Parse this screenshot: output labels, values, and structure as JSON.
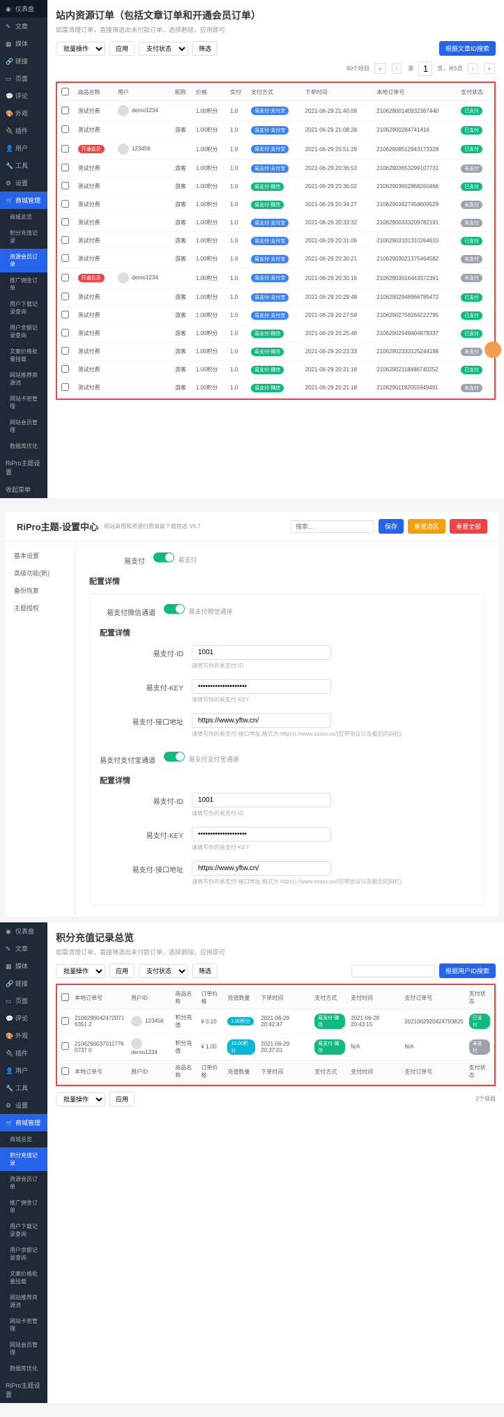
{
  "s1": {
    "title": "站内资源订单（包括文章订单和开通会员订单）",
    "subtitle": "如需清理订单，直接筛选出未付款订单，选择删除，应用即可",
    "bulk": "批量操作",
    "apply": "应用",
    "payStatus": "支付状态",
    "filter": "筛选",
    "searchBtn": "根据文章ID搜索",
    "pagerText": "90个项目",
    "pageLabel": "页，共5页",
    "cols": [
      "商品名称",
      "用户",
      "昵称",
      "价格",
      "实付",
      "支付方式",
      "下单时间",
      "本地订单号",
      "支付状态"
    ],
    "side": [
      "仪表盘",
      "文章",
      "媒体",
      "链接",
      "页面",
      "评论",
      "外观",
      "插件",
      "用户",
      "工具",
      "设置"
    ],
    "sideShop": "商城管理",
    "sideSub": [
      "商城总览",
      "积分充值记录",
      "资源会员订单",
      "推广佣金订单",
      "用户下载记录查询",
      "用户余额记录查询",
      "文案价格批量挂载",
      "网站推荐资源池",
      "网站卡密管理",
      "网站会员管理",
      "数据库优化"
    ],
    "sideRipro": "RiPro主题设置",
    "sideCollapse": "收起菜单",
    "rows": [
      {
        "name": "测试付费",
        "nameBadge": "",
        "user": "demo1234",
        "nick": "",
        "price": "1.00积分",
        "paid": "1.0",
        "pay": "易支付-支付宝",
        "payCls": "b-blue",
        "time": "2021-06-29 21:40:09",
        "order": "21062900140932367440",
        "status": "已支付",
        "stCls": "b-green"
      },
      {
        "name": "测试付费",
        "nameBadge": "",
        "user": "",
        "nick": "游客",
        "price": "1.00积分",
        "paid": "1.0",
        "pay": "易支付-支付宝",
        "payCls": "b-blue",
        "time": "2021-06-29 21:08:28",
        "order": "21062900284741416",
        "status": "已支付",
        "stCls": "b-green"
      },
      {
        "name": "",
        "nameBadge": "开通会员",
        "user": "123456",
        "nick": "",
        "price": "1.00积分",
        "paid": "1.0",
        "pay": "易支付-支付宝",
        "payCls": "b-blue",
        "time": "2021-06-29 20:51:29",
        "order": "21062908512943173328",
        "status": "已支付",
        "stCls": "b-green"
      },
      {
        "name": "测试付费",
        "nameBadge": "",
        "user": "",
        "nick": "游客",
        "price": "1.00积分",
        "paid": "1.0",
        "pay": "易支付-支付宝",
        "payCls": "b-blue",
        "time": "2021-06-29 20:36:53",
        "order": "21062903653299107731",
        "status": "未支付",
        "stCls": "b-gray"
      },
      {
        "name": "测试付费",
        "nameBadge": "",
        "user": "",
        "nick": "游客",
        "price": "1.00积分",
        "paid": "1.0",
        "pay": "易支付-微信",
        "payCls": "b-green",
        "time": "2021-06-29 20:36:02",
        "order": "21062903602868260466",
        "status": "已支付",
        "stCls": "b-green"
      },
      {
        "name": "测试付费",
        "nameBadge": "",
        "user": "",
        "nick": "游客",
        "price": "1.00积分",
        "paid": "1.0",
        "pay": "易支付-微信",
        "payCls": "b-green",
        "time": "2021-06-29 20:34:27",
        "order": "21062903427458609529",
        "status": "未支付",
        "stCls": "b-gray"
      },
      {
        "name": "测试付费",
        "nameBadge": "",
        "user": "",
        "nick": "游客",
        "price": "1.00积分",
        "paid": "1.0",
        "pay": "易支付-支付宝",
        "payCls": "b-blue",
        "time": "2021-06-29 20:33:32",
        "order": "21062900333209782191",
        "status": "未支付",
        "stCls": "b-gray"
      },
      {
        "name": "测试付费",
        "nameBadge": "",
        "user": "",
        "nick": "游客",
        "price": "1.00积分",
        "paid": "1.0",
        "pay": "易支付-支付宝",
        "payCls": "b-blue",
        "time": "2021-06-29 20:31:06",
        "order": "21062903101310264610",
        "status": "已支付",
        "stCls": "b-green"
      },
      {
        "name": "测试付费",
        "nameBadge": "",
        "user": "",
        "nick": "游客",
        "price": "1.00积分",
        "paid": "1.0",
        "pay": "易支付-支付宝",
        "payCls": "b-blue",
        "time": "2021-06-29 20:30:21",
        "order": "21062903021375464582",
        "status": "未支付",
        "stCls": "b-gray"
      },
      {
        "name": "",
        "nameBadge": "开通会员",
        "user": "demo1234",
        "nick": "",
        "price": "1.00积分",
        "paid": "1.0",
        "pay": "易支付-支付宝",
        "payCls": "b-blue",
        "time": "2021-06-29 20:30:16",
        "order": "21062903016443372391",
        "status": "未支付",
        "stCls": "b-gray"
      },
      {
        "name": "测试付费",
        "nameBadge": "",
        "user": "",
        "nick": "游客",
        "price": "1.00积分",
        "paid": "1.0",
        "pay": "易支付-支付宝",
        "payCls": "b-blue",
        "time": "2021-06-29 20:29:48",
        "order": "21062902948966785472",
        "status": "已支付",
        "stCls": "b-green"
      },
      {
        "name": "测试付费",
        "nameBadge": "",
        "user": "",
        "nick": "游客",
        "price": "1.00积分",
        "paid": "1.0",
        "pay": "易支付-支付宝",
        "payCls": "b-blue",
        "time": "2021-06-29 20:27:58",
        "order": "21062902758264222795",
        "status": "已支付",
        "stCls": "b-green"
      },
      {
        "name": "测试付费",
        "nameBadge": "",
        "user": "",
        "nick": "游客",
        "price": "1.00积分",
        "paid": "1.0",
        "pay": "易支付-微信",
        "payCls": "b-green",
        "time": "2021-06-29 20:25:49",
        "order": "21062902549404878337",
        "status": "已支付",
        "stCls": "b-green"
      },
      {
        "name": "测试付费",
        "nameBadge": "",
        "user": "",
        "nick": "游客",
        "price": "1.00积分",
        "paid": "1.0",
        "pay": "易支付-微信",
        "payCls": "b-green",
        "time": "2021-06-29 20:23:33",
        "order": "21062902333125244198",
        "status": "未支付",
        "stCls": "b-gray"
      },
      {
        "name": "测试付费",
        "nameBadge": "",
        "user": "",
        "nick": "游客",
        "price": "1.00积分",
        "paid": "1.0",
        "pay": "易支付-微信",
        "payCls": "b-green",
        "time": "2021-06-29 20:21:18",
        "order": "21062902118486740252",
        "status": "已支付",
        "stCls": "b-green"
      },
      {
        "name": "测试付费",
        "nameBadge": "",
        "user": "",
        "nick": "游客",
        "price": "1.00积分",
        "paid": "1.0",
        "pay": "易支付-微信",
        "payCls": "b-green",
        "time": "2021-06-29 20:21:18",
        "order": "21062901182055949491",
        "status": "未支付",
        "stCls": "b-gray"
      }
    ]
  },
  "s2": {
    "title": "RiPro主题-设置中心",
    "subtitle": "网站商用和资源付费商最下载首选 V8.7",
    "searchPh": "搜索...",
    "save": "保存",
    "reset": "重置选区",
    "resetAll": "重置全部",
    "side": [
      "基本设置",
      "高级功能(新)",
      "备份恢复",
      "主题授权"
    ],
    "easyPay": "易支付",
    "easyPayOn": "易支付",
    "configDetail": "配置详情",
    "wxChannel": "易支付微信通道",
    "wxChannelHint": "易支付微信通道",
    "aliChannel": "易支付支付宝通道",
    "aliChannelHint": "易支付支付宝通道",
    "idLbl": "易支付-ID",
    "idVal": "1001",
    "idHint": "请填写你的易支付-ID",
    "keyLbl": "易支付-KEY",
    "keyVal": "••••••••••••••••••••",
    "keyHint": "请填写你的易支付-KEY",
    "urlLbl": "易支付-接口地址",
    "urlVal": "https://www.yftw.cn/",
    "urlHint": "请填写你的易支付-接口地址,格式为 http(s)://www.xxxxx.xx/(应带协议以及最后的斜杠)"
  },
  "s3": {
    "title": "积分充值记录总览",
    "subtitle": "如需清理订单，直接筛选出未付款订单，选择删除，应用即可",
    "bulk": "批量操作",
    "apply": "应用",
    "payStatus": "支付状态",
    "filter": "筛选",
    "searchBtn": "根据用户ID搜索",
    "total": "2个项目",
    "cols": [
      "本地订单号",
      "用户ID",
      "商品名称",
      "订单价格",
      "充值数量",
      "下单时间",
      "支付方式",
      "支付时间",
      "支付订单号",
      "支付状态"
    ],
    "side": [
      "仪表盘",
      "文章",
      "媒体",
      "链接",
      "页面",
      "评论",
      "外观",
      "插件",
      "用户",
      "工具",
      "设置"
    ],
    "sideShop": "商城管理",
    "sideSub": [
      "商城总览",
      "积分充值记录",
      "资源会员订单",
      "推广佣金订单",
      "用户下载记录查询",
      "用户余额记录查询",
      "文案价格批量挂载",
      "网站推荐资源池",
      "网站卡密管理",
      "网站会员管理",
      "数据库优化"
    ],
    "sideRipro": "RiPro主题设置",
    "rows": [
      {
        "order": "21062900424720716351 2",
        "user": "123456",
        "prod": "积分充值",
        "price": "¥ 0.10",
        "qty": "1.00积分",
        "qtyCls": "b-cyan",
        "time": "2021-06-29 20:42:47",
        "pay": "易支付-微信",
        "payCls": "b-green",
        "payTime": "2021-06-29 20:43:15",
        "payOrder": "2021062920424793825",
        "status": "已支付",
        "stCls": "b-green"
      },
      {
        "order": "21062900370117760737 0",
        "user": "demo1234",
        "prod": "积分充值",
        "price": "¥ 1.00",
        "qty": "10.00积分",
        "qtyCls": "b-cyan",
        "time": "2021-06-29 20:37:01",
        "pay": "易支付-微信",
        "payCls": "b-green",
        "payTime": "N/A",
        "payOrder": "N/A",
        "status": "未支付",
        "stCls": "b-gray"
      }
    ]
  }
}
